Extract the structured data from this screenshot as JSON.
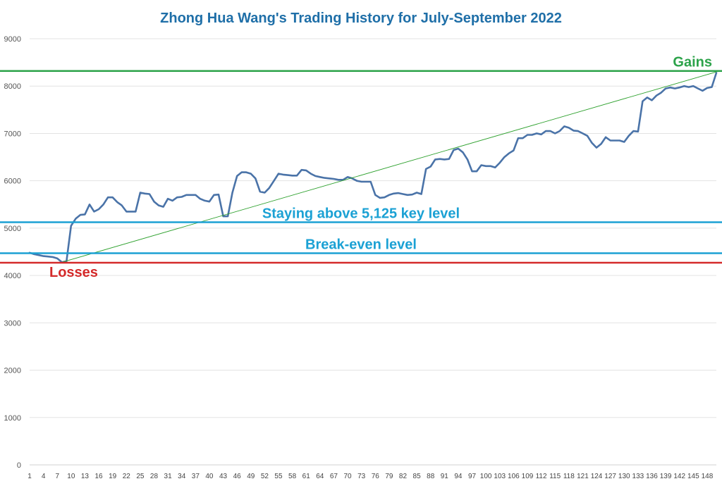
{
  "chart_data": {
    "type": "line",
    "title": "Zhong Hua Wang's Trading History for July-September 2022",
    "xlabel": "",
    "ylabel": "",
    "ylim": [
      0,
      9000
    ],
    "xlim": [
      1,
      150
    ],
    "grid": true,
    "yticks": [
      0,
      1000,
      2000,
      3000,
      4000,
      5000,
      6000,
      7000,
      8000,
      9000
    ],
    "xticks": [
      1,
      4,
      7,
      10,
      13,
      16,
      19,
      22,
      25,
      28,
      31,
      34,
      37,
      40,
      43,
      46,
      49,
      52,
      55,
      58,
      61,
      64,
      67,
      70,
      73,
      76,
      79,
      82,
      85,
      88,
      91,
      94,
      97,
      100,
      103,
      106,
      109,
      112,
      115,
      118,
      121,
      124,
      127,
      130,
      133,
      136,
      139,
      142,
      145,
      148
    ],
    "line_color": "#4a73a8",
    "series": [
      {
        "values": [
          4480,
          4450,
          4430,
          4410,
          4400,
          4390,
          4360,
          4280,
          4300,
          5050,
          5200,
          5280,
          5290,
          5500,
          5350,
          5400,
          5500,
          5650,
          5650,
          5550,
          5480,
          5350,
          5350,
          5350,
          5750,
          5730,
          5720,
          5560,
          5480,
          5450,
          5620,
          5580,
          5650,
          5660,
          5700,
          5700,
          5700,
          5620,
          5580,
          5560,
          5700,
          5710,
          5250,
          5250,
          5750,
          6100,
          6180,
          6180,
          6150,
          6050,
          5770,
          5750,
          5850,
          6000,
          6150,
          6130,
          6120,
          6110,
          6110,
          6230,
          6220,
          6150,
          6100,
          6080,
          6060,
          6050,
          6040,
          6020,
          6020,
          6080,
          6050,
          6000,
          5980,
          5980,
          5980,
          5700,
          5640,
          5650,
          5700,
          5730,
          5740,
          5720,
          5700,
          5710,
          5750,
          5720,
          6250,
          6300,
          6450,
          6460,
          6450,
          6460,
          6650,
          6680,
          6600,
          6450,
          6200,
          6200,
          6330,
          6310,
          6310,
          6280,
          6380,
          6500,
          6580,
          6640,
          6900,
          6900,
          6970,
          6970,
          7000,
          6980,
          7050,
          7050,
          7000,
          7050,
          7150,
          7120,
          7060,
          7050,
          7000,
          6950,
          6800,
          6700,
          6780,
          6920,
          6850,
          6850,
          6850,
          6820,
          6950,
          7050,
          7040,
          7680,
          7760,
          7700,
          7800,
          7860,
          7950,
          7970,
          7950,
          7970,
          8000,
          7980,
          8000,
          7950,
          7900,
          7960,
          7980,
          8280
        ]
      },
      {
        "type": "trendline",
        "x": [
          8,
          150
        ],
        "values": [
          4280,
          8300
        ],
        "color": "#2ca02c"
      }
    ],
    "reference_lines": [
      {
        "value": 8320,
        "label": "Gains",
        "color": "#2ca34a",
        "label_position": "right"
      },
      {
        "value": 5125,
        "label": "Staying above 5,125 key level",
        "color": "#1ba1d4",
        "label_position": "center"
      },
      {
        "value": 4470,
        "label": "Break-even level",
        "color": "#1ba1d4",
        "label_position": "center"
      },
      {
        "value": 4270,
        "label": "Losses",
        "color": "#d42a2a",
        "label_position": "left"
      }
    ]
  }
}
